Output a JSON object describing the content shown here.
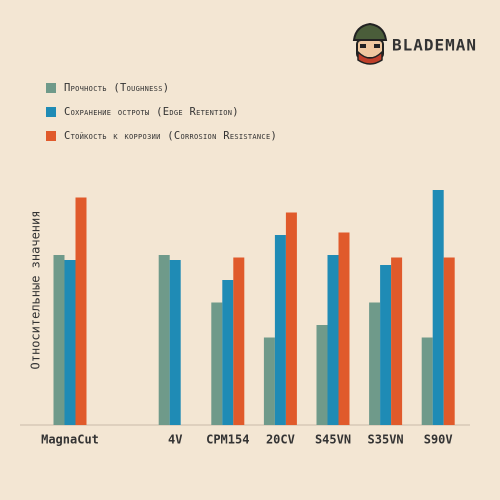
{
  "brand": "BLADEMAN",
  "chart_data": {
    "type": "bar",
    "y_label": "Относительные значения",
    "categories": [
      "MagnaCut",
      null,
      "4V",
      "CPM154",
      "20CV",
      "S45VN",
      "S35VN",
      "S90V"
    ],
    "series": [
      {
        "name": "Прочность (Toughness)",
        "color": "#6f9a8a",
        "values": [
          6.8,
          null,
          6.8,
          4.9,
          3.5,
          4.0,
          4.9,
          3.5
        ]
      },
      {
        "name": "Сохранение остроты (Edge Retention)",
        "color": "#1f8bb5",
        "values": [
          6.6,
          null,
          6.6,
          5.8,
          7.6,
          6.8,
          6.4,
          9.4
        ]
      },
      {
        "name": "Стойкость к коррозии (Corrosion Resistance)",
        "color": "#e05a2b",
        "values": [
          9.1,
          null,
          null,
          6.7,
          8.5,
          7.7,
          6.7,
          6.7
        ]
      }
    ],
    "ylim": [
      0,
      10
    ]
  }
}
